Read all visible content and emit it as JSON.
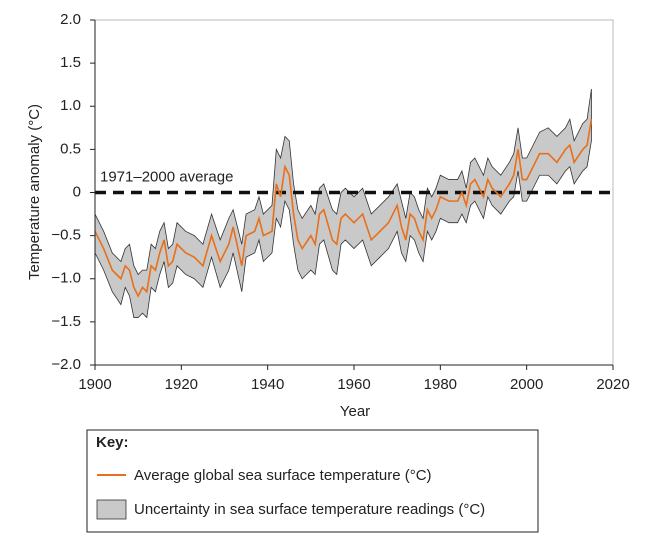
{
  "chart_data": {
    "type": "line",
    "x_label": "Year",
    "y_label": "Temperature anomaly (°C)",
    "xlim": [
      1900,
      2020
    ],
    "xticks": [
      1900,
      1920,
      1940,
      1960,
      1980,
      2000,
      2020
    ],
    "ylim": [
      -2,
      2
    ],
    "yticks": [
      {
        "value": 2,
        "label": "2.0"
      },
      {
        "value": 1.5,
        "label": "1.5"
      },
      {
        "value": 1,
        "label": "1.0"
      },
      {
        "value": 0.5,
        "label": "0.5"
      },
      0,
      {
        "value": -0.5,
        "label": "−0.5"
      },
      {
        "value": -1,
        "label": "−1.0"
      },
      {
        "value": -1.5,
        "label": "−1.5"
      },
      {
        "value": -2,
        "label": "−2.0"
      }
    ],
    "reference_line": {
      "value": 0,
      "label": "1971–2000 average"
    },
    "legend_title": "Key:",
    "x": [
      1900,
      1902,
      1904,
      1906,
      1907,
      1908,
      1909,
      1910,
      1911,
      1912,
      1913,
      1914,
      1915,
      1916,
      1917,
      1918,
      1919,
      1921,
      1923,
      1925,
      1927,
      1929,
      1931,
      1932,
      1934,
      1935,
      1937,
      1938,
      1939,
      1941,
      1942,
      1943,
      1944,
      1945,
      1946,
      1947,
      1948,
      1950,
      1951,
      1952,
      1953,
      1955,
      1956,
      1957,
      1958,
      1960,
      1962,
      1964,
      1966,
      1968,
      1970,
      1971,
      1972,
      1973,
      1974,
      1975,
      1976,
      1977,
      1978,
      1979,
      1980,
      1982,
      1984,
      1985,
      1986,
      1987,
      1988,
      1990,
      1991,
      1992,
      1994,
      1996,
      1997,
      1998,
      1999,
      2000,
      2002,
      2003,
      2005,
      2007,
      2009,
      2010,
      2011,
      2013,
      2014,
      2015
    ],
    "series": [
      {
        "name": "Average global sea surface temperature (°C)",
        "color": "#e8701a",
        "values": [
          -0.45,
          -0.65,
          -0.9,
          -1.0,
          -0.85,
          -0.9,
          -1.1,
          -1.2,
          -1.1,
          -1.15,
          -0.85,
          -0.9,
          -0.7,
          -0.55,
          -0.85,
          -0.8,
          -0.6,
          -0.7,
          -0.75,
          -0.85,
          -0.5,
          -0.8,
          -0.6,
          -0.4,
          -0.85,
          -0.5,
          -0.45,
          -0.3,
          -0.5,
          -0.45,
          0.1,
          -0.05,
          0.3,
          0.2,
          -0.25,
          -0.55,
          -0.65,
          -0.5,
          -0.6,
          -0.25,
          -0.2,
          -0.55,
          -0.6,
          -0.3,
          -0.25,
          -0.35,
          -0.25,
          -0.55,
          -0.45,
          -0.35,
          -0.15,
          -0.4,
          -0.55,
          -0.25,
          -0.3,
          -0.45,
          -0.55,
          -0.2,
          -0.3,
          -0.2,
          -0.05,
          -0.1,
          -0.1,
          0,
          -0.15,
          0.1,
          0.15,
          -0.05,
          0.15,
          0.05,
          -0.05,
          0.1,
          0.2,
          0.5,
          0.15,
          0.15,
          0.35,
          0.45,
          0.45,
          0.35,
          0.5,
          0.55,
          0.35,
          0.5,
          0.55,
          0.85
        ]
      }
    ],
    "band": {
      "name": "Uncertainty in sea surface temperature readings (°C)",
      "color": "#c9c9c9",
      "lower": [
        -0.7,
        -0.9,
        -1.15,
        -1.3,
        -1.1,
        -1.2,
        -1.45,
        -1.45,
        -1.4,
        -1.45,
        -1.1,
        -1.15,
        -0.95,
        -0.8,
        -1.1,
        -1.05,
        -0.85,
        -0.95,
        -1.0,
        -1.1,
        -0.75,
        -1.1,
        -0.9,
        -0.7,
        -1.15,
        -0.75,
        -0.7,
        -0.55,
        -0.8,
        -0.7,
        -0.3,
        -0.4,
        -0.1,
        -0.2,
        -0.6,
        -0.9,
        -1.0,
        -0.9,
        -0.95,
        -0.6,
        -0.55,
        -0.9,
        -0.95,
        -0.6,
        -0.55,
        -0.65,
        -0.55,
        -0.85,
        -0.75,
        -0.65,
        -0.45,
        -0.7,
        -0.8,
        -0.5,
        -0.55,
        -0.7,
        -0.8,
        -0.45,
        -0.55,
        -0.45,
        -0.3,
        -0.35,
        -0.35,
        -0.25,
        -0.35,
        -0.15,
        -0.1,
        -0.3,
        -0.05,
        -0.15,
        -0.25,
        -0.1,
        -0.05,
        0.25,
        -0.1,
        -0.1,
        0.1,
        0.2,
        0.2,
        0.1,
        0.25,
        0.3,
        0.1,
        0.25,
        0.3,
        0.6
      ],
      "upper": [
        -0.25,
        -0.45,
        -0.7,
        -0.8,
        -0.65,
        -0.6,
        -0.85,
        -0.95,
        -0.9,
        -0.9,
        -0.6,
        -0.65,
        -0.45,
        -0.35,
        -0.65,
        -0.6,
        -0.35,
        -0.45,
        -0.5,
        -0.6,
        -0.25,
        -0.55,
        -0.3,
        -0.2,
        -0.6,
        -0.25,
        -0.2,
        -0.05,
        -0.25,
        -0.15,
        0.5,
        0.4,
        0.65,
        0.6,
        0.1,
        -0.2,
        -0.3,
        -0.15,
        -0.25,
        0.05,
        0.1,
        -0.2,
        -0.25,
        0,
        0.05,
        -0.05,
        0.05,
        -0.25,
        -0.15,
        -0.05,
        0.1,
        -0.1,
        -0.3,
        0,
        -0.05,
        -0.2,
        -0.3,
        0.05,
        -0.05,
        0.05,
        0.2,
        0.15,
        0.15,
        0.25,
        0.05,
        0.35,
        0.4,
        0.2,
        0.4,
        0.3,
        0.2,
        0.35,
        0.45,
        0.75,
        0.4,
        0.4,
        0.6,
        0.7,
        0.75,
        0.65,
        0.75,
        0.85,
        0.6,
        0.8,
        0.85,
        1.2
      ]
    }
  }
}
